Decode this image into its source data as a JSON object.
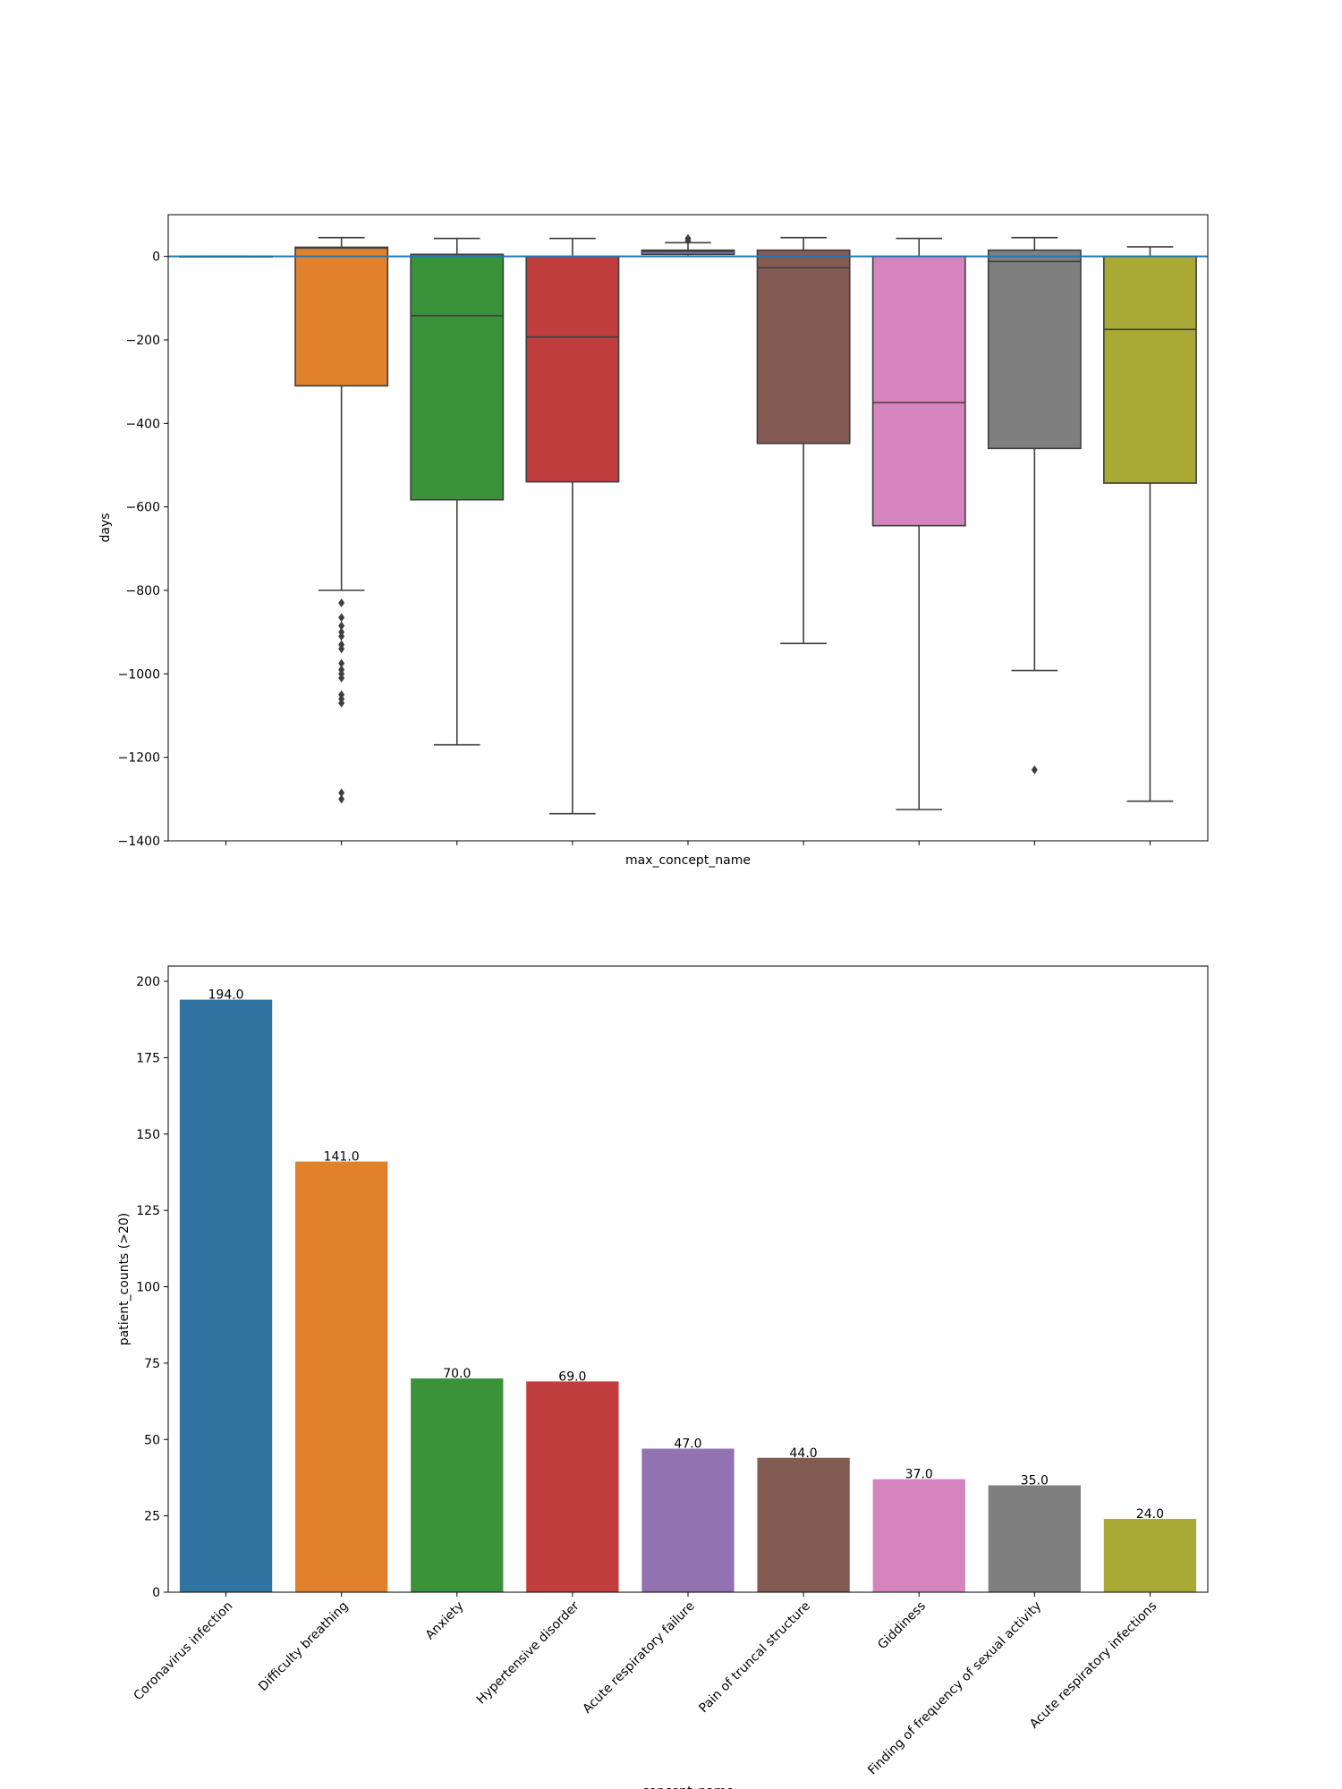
{
  "chart_data": [
    {
      "type": "box",
      "title": "",
      "xlabel": "max_concept_name",
      "ylabel": "days",
      "ylim": [
        -1400,
        100
      ],
      "yticks": [
        0,
        -200,
        -400,
        -600,
        -800,
        -1000,
        -1200,
        -1400
      ],
      "ytick_labels": [
        "0",
        "−200",
        "−400",
        "−600",
        "−800",
        "−1000",
        "−1200",
        "−1400"
      ],
      "reference_line_y": 0,
      "categories": [
        "Coronavirus infection",
        "Difficulty breathing",
        "Anxiety",
        "Hypertensive disorder",
        "Acute respiratory failure",
        "Pain of truncal structure",
        "Giddiness",
        "Finding of frequency of sexual activity",
        "Acute respiratory infections"
      ],
      "colors": [
        "#3274a1",
        "#e1812c",
        "#3a923a",
        "#c03d3e",
        "#9372b2",
        "#845b53",
        "#d684bd",
        "#7f7f7f",
        "#a9aa35"
      ],
      "boxes": [
        {
          "whisker_low": 0,
          "q1": 0,
          "median": 0,
          "q3": 0,
          "whisker_high": 0,
          "outliers": []
        },
        {
          "whisker_low": -800,
          "q1": -310,
          "median": 20,
          "q3": 22,
          "whisker_high": 45,
          "outliers": [
            -830,
            -865,
            -885,
            -900,
            -910,
            -930,
            -940,
            -975,
            -990,
            -1000,
            -1010,
            -1050,
            -1060,
            -1070,
            -1285,
            -1300
          ]
        },
        {
          "whisker_low": -1170,
          "q1": -583,
          "median": -142,
          "q3": 5,
          "whisker_high": 43,
          "outliers": []
        },
        {
          "whisker_low": -1335,
          "q1": -540,
          "median": -193,
          "q3": 0,
          "whisker_high": 43,
          "outliers": []
        },
        {
          "whisker_low": 0,
          "q1": 5,
          "median": 12,
          "q3": 15,
          "whisker_high": 33,
          "outliers": [
            38,
            43
          ]
        },
        {
          "whisker_low": -927,
          "q1": -448,
          "median": -27,
          "q3": 15,
          "whisker_high": 45,
          "outliers": []
        },
        {
          "whisker_low": -1325,
          "q1": -645,
          "median": -350,
          "q3": 0,
          "whisker_high": 43,
          "outliers": []
        },
        {
          "whisker_low": -992,
          "q1": -460,
          "median": -12,
          "q3": 15,
          "whisker_high": 45,
          "outliers": [
            -1230
          ]
        },
        {
          "whisker_low": -1305,
          "q1": -543,
          "median": -175,
          "q3": 0,
          "whisker_high": 23,
          "outliers": []
        }
      ]
    },
    {
      "type": "bar",
      "title": "",
      "xlabel": "concept_name",
      "ylabel": "patient_counts (>20)",
      "ylim": [
        0,
        205
      ],
      "yticks": [
        0,
        25,
        50,
        75,
        100,
        125,
        150,
        175,
        200
      ],
      "ytick_labels": [
        "0",
        "25",
        "50",
        "75",
        "100",
        "125",
        "150",
        "175",
        "200"
      ],
      "categories": [
        "Coronavirus infection",
        "Difficulty breathing",
        "Anxiety",
        "Hypertensive disorder",
        "Acute respiratory failure",
        "Pain of truncal structure",
        "Giddiness",
        "Finding of frequency of sexual activity",
        "Acute respiratory infections"
      ],
      "values": [
        194.0,
        141.0,
        70.0,
        69.0,
        47.0,
        44.0,
        37.0,
        35.0,
        24.0
      ],
      "value_labels": [
        "194.0",
        "141.0",
        "70.0",
        "69.0",
        "47.0",
        "44.0",
        "37.0",
        "35.0",
        "24.0"
      ],
      "colors": [
        "#3274a1",
        "#e1812c",
        "#3a923a",
        "#c03d3e",
        "#9372b2",
        "#845b53",
        "#d684bd",
        "#7f7f7f",
        "#a9aa35"
      ]
    }
  ]
}
